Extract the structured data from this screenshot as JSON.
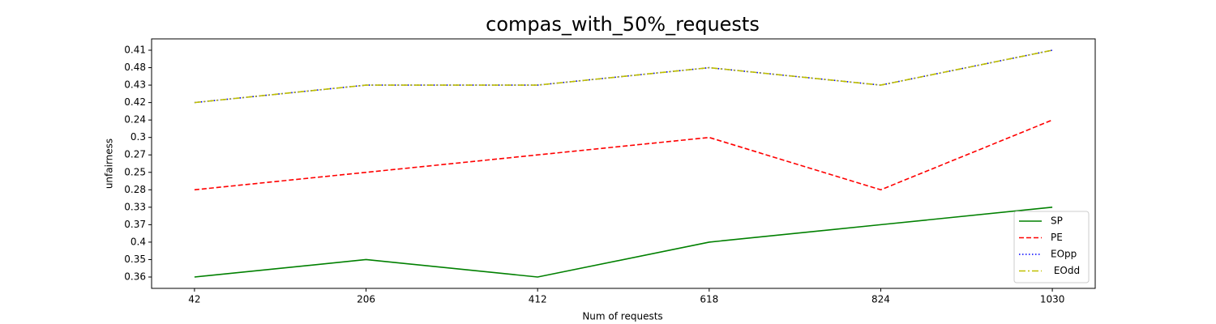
{
  "chart_data": {
    "type": "line",
    "title": "compas_with_50%_requests",
    "x_label": "Num of requests",
    "y_label": "unfairness",
    "categories": [
      42,
      206,
      412,
      618,
      824,
      1030
    ],
    "y_categories": [
      0.36,
      0.35,
      0.4,
      0.37,
      0.33,
      0.28,
      0.25,
      0.27,
      0.3,
      0.24,
      0.42,
      0.43,
      0.48,
      0.41
    ],
    "series": [
      {
        "name": "SP",
        "color": "#008000",
        "dash": "solid",
        "values": [
          0.36,
          0.35,
          0.36,
          0.4,
          0.37,
          0.33
        ]
      },
      {
        "name": "PE",
        "color": "#ff0000",
        "dash": "dashed",
        "values": [
          0.28,
          0.25,
          0.27,
          0.3,
          0.28,
          0.24
        ]
      },
      {
        "name": "EOpp",
        "color": "#0000ff",
        "dash": "dotted",
        "values": [
          0.42,
          0.43,
          0.43,
          0.48,
          0.43,
          0.41
        ]
      },
      {
        "name": " EOdd",
        "color": "#bfbf00",
        "dash": "dashdot",
        "values": [
          0.42,
          0.43,
          0.43,
          0.48,
          0.43,
          0.41
        ]
      }
    ],
    "legend": "lower right"
  }
}
